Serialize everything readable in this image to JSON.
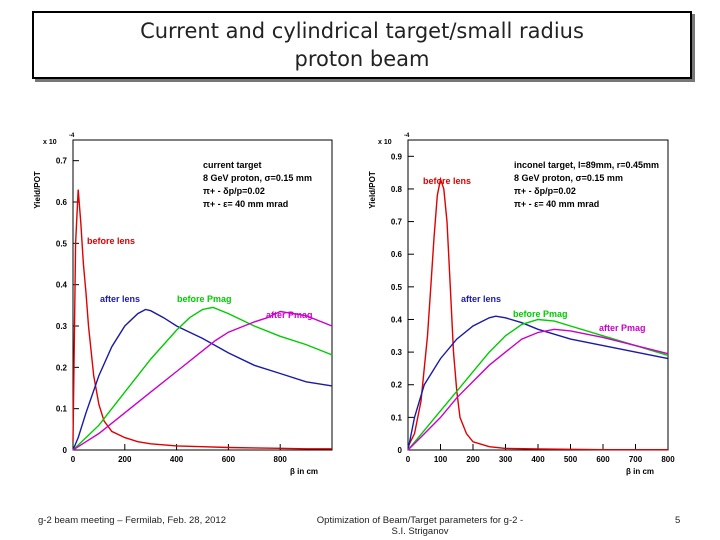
{
  "slide": {
    "title_line1": "Current and cylindrical target/small radius",
    "title_line2": "proton beam",
    "footer_left": "g-2 beam meeting – Fermilab, Feb. 28, 2012",
    "footer_center_line1": "Optimization of Beam/Target parameters for g-2 -",
    "footer_center_line2": "S.I. Striganov",
    "page_number": "5"
  },
  "chart_data": [
    {
      "type": "line",
      "ylabel": "Yield/POT",
      "xlabel": "β in cm",
      "yexp": "x 10",
      "yexp_power": "-4",
      "xlim": [
        0,
        1000
      ],
      "ylim": [
        0,
        0.75
      ],
      "xticks": [
        0,
        200,
        400,
        600,
        800
      ],
      "yticks": [
        0,
        0.1,
        0.2,
        0.3,
        0.4,
        0.5,
        0.6,
        0.7
      ],
      "annotations": [
        "current target",
        "8 GeV proton, σ=0.15 mm",
        "π+ - δp/p=0.02",
        "π+ - ε= 40 mm mrad"
      ],
      "series": [
        {
          "name": "before lens",
          "color": "#e00000",
          "x": [
            0,
            10,
            20,
            30,
            40,
            50,
            60,
            70,
            80,
            100,
            120,
            150,
            200,
            250,
            300,
            400,
            500,
            600,
            700,
            800,
            900,
            1000
          ],
          "y": [
            0.02,
            0.5,
            0.63,
            0.55,
            0.45,
            0.38,
            0.3,
            0.24,
            0.18,
            0.11,
            0.07,
            0.045,
            0.03,
            0.02,
            0.015,
            0.01,
            0.008,
            0.006,
            0.005,
            0.004,
            0.003,
            0.003
          ]
        },
        {
          "name": "after lens",
          "color": "#1a1aa8",
          "x": [
            0,
            20,
            50,
            100,
            150,
            200,
            250,
            280,
            300,
            350,
            400,
            450,
            500,
            600,
            700,
            800,
            900,
            1000
          ],
          "y": [
            0,
            0.03,
            0.09,
            0.18,
            0.25,
            0.3,
            0.33,
            0.34,
            0.337,
            0.32,
            0.3,
            0.285,
            0.27,
            0.235,
            0.205,
            0.185,
            0.165,
            0.155
          ]
        },
        {
          "name": "before Pmag",
          "color": "#00cc00",
          "x": [
            0,
            50,
            100,
            200,
            300,
            400,
            450,
            500,
            540,
            600,
            700,
            800,
            900,
            1000
          ],
          "y": [
            0,
            0.03,
            0.06,
            0.14,
            0.22,
            0.29,
            0.32,
            0.34,
            0.345,
            0.33,
            0.3,
            0.275,
            0.255,
            0.23
          ]
        },
        {
          "name": "after Pmag",
          "color": "#cc00cc",
          "x": [
            0,
            50,
            100,
            200,
            300,
            400,
            500,
            550,
            600,
            700,
            750,
            800,
            850,
            900,
            1000
          ],
          "y": [
            0,
            0.02,
            0.04,
            0.09,
            0.14,
            0.19,
            0.24,
            0.265,
            0.285,
            0.31,
            0.32,
            0.335,
            0.33,
            0.325,
            0.3
          ]
        }
      ]
    },
    {
      "type": "line",
      "ylabel": "Yield/POT",
      "xlabel": "β in cm",
      "yexp": "x 10",
      "yexp_power": "-4",
      "xlim": [
        0,
        800
      ],
      "ylim": [
        0,
        0.95
      ],
      "xticks": [
        0,
        100,
        200,
        300,
        400,
        500,
        600,
        700,
        800
      ],
      "yticks": [
        0,
        0.1,
        0.2,
        0.3,
        0.4,
        0.5,
        0.6,
        0.7,
        0.8,
        0.9
      ],
      "annotations": [
        "inconel target, l=89mm, r=0.45mm",
        "8 GeV proton, σ=0.15 mm",
        "π+ - δp/p=0.02",
        "π+ - ε= 40 mm mrad"
      ],
      "series": [
        {
          "name": "before lens",
          "color": "#e00000",
          "x": [
            0,
            20,
            40,
            60,
            70,
            80,
            90,
            100,
            110,
            120,
            130,
            140,
            150,
            160,
            180,
            200,
            250,
            300,
            400,
            500,
            600,
            800
          ],
          "y": [
            0.01,
            0.05,
            0.15,
            0.35,
            0.5,
            0.65,
            0.78,
            0.83,
            0.8,
            0.7,
            0.5,
            0.3,
            0.18,
            0.1,
            0.05,
            0.025,
            0.01,
            0.005,
            0.003,
            0.002,
            0.001,
            0.001
          ]
        },
        {
          "name": "after lens",
          "color": "#1a1aa8",
          "x": [
            0,
            20,
            50,
            100,
            150,
            200,
            250,
            270,
            300,
            350,
            400,
            450,
            500,
            600,
            700,
            800
          ],
          "y": [
            0,
            0.1,
            0.2,
            0.28,
            0.34,
            0.38,
            0.405,
            0.41,
            0.405,
            0.39,
            0.37,
            0.355,
            0.34,
            0.32,
            0.3,
            0.28
          ]
        },
        {
          "name": "before Pmag",
          "color": "#00cc00",
          "x": [
            0,
            50,
            100,
            150,
            200,
            250,
            300,
            350,
            400,
            450,
            500,
            600,
            700,
            800
          ],
          "y": [
            0,
            0.06,
            0.12,
            0.18,
            0.24,
            0.3,
            0.35,
            0.385,
            0.4,
            0.395,
            0.38,
            0.35,
            0.32,
            0.29
          ]
        },
        {
          "name": "after Pmag",
          "color": "#cc00cc",
          "x": [
            0,
            50,
            100,
            150,
            200,
            250,
            300,
            350,
            400,
            450,
            500,
            600,
            700,
            800
          ],
          "y": [
            0,
            0.05,
            0.1,
            0.16,
            0.21,
            0.26,
            0.3,
            0.34,
            0.36,
            0.37,
            0.365,
            0.345,
            0.32,
            0.295
          ]
        }
      ]
    }
  ]
}
